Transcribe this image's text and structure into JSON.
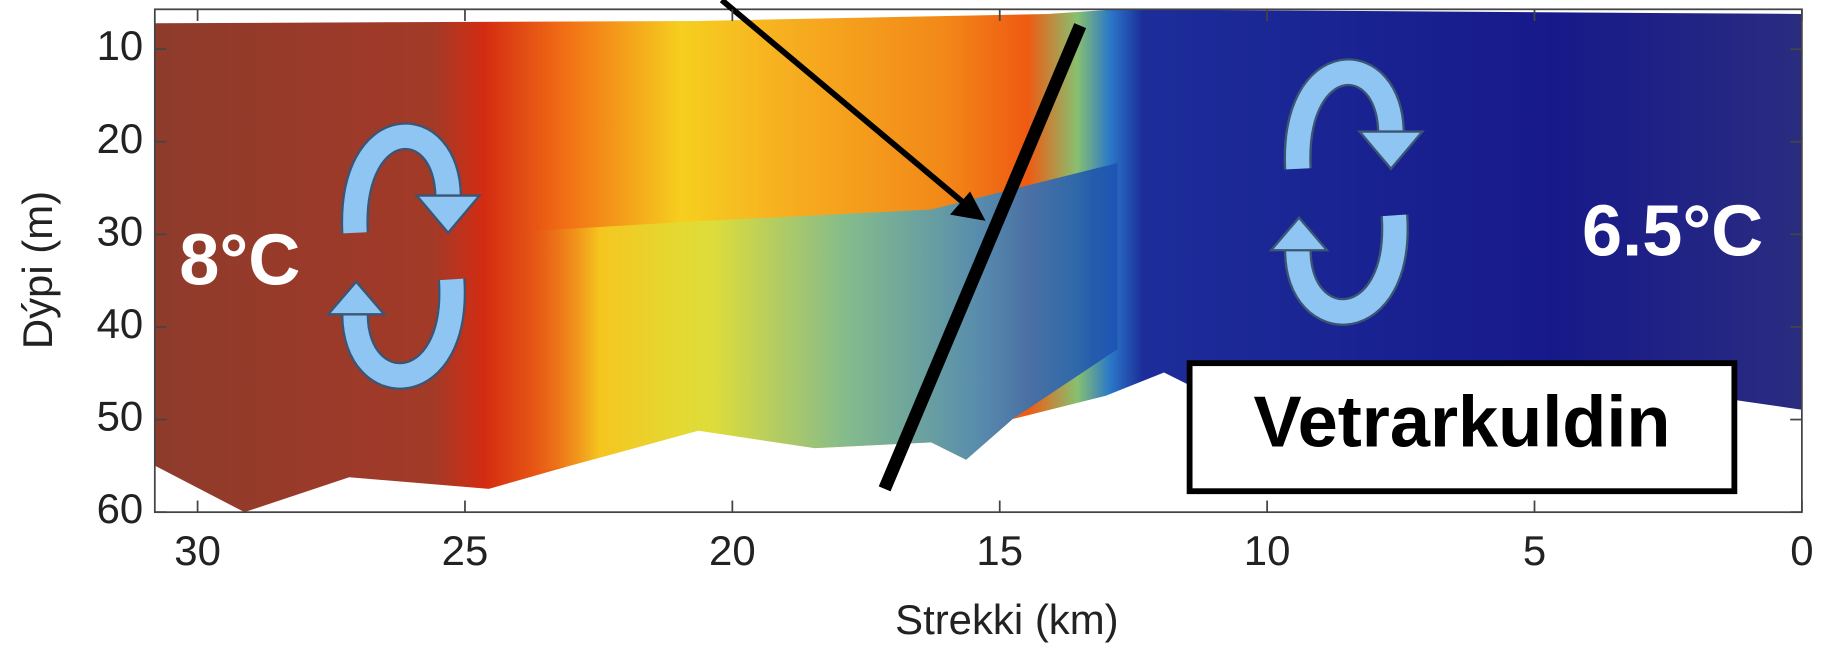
{
  "chart_data": {
    "type": "section",
    "x_label": "Strekki (km)",
    "y_label": "Dýpi (m)",
    "xlim": [
      30.8,
      0
    ],
    "xticks": [
      30,
      25,
      20,
      15,
      10,
      5,
      0
    ],
    "ylim": [
      5.7,
      60
    ],
    "yticks": [
      10,
      20,
      30,
      40,
      50,
      60
    ],
    "annotations": [
      "8°C",
      "6.5°C",
      "Vetrarkuldin"
    ]
  }
}
